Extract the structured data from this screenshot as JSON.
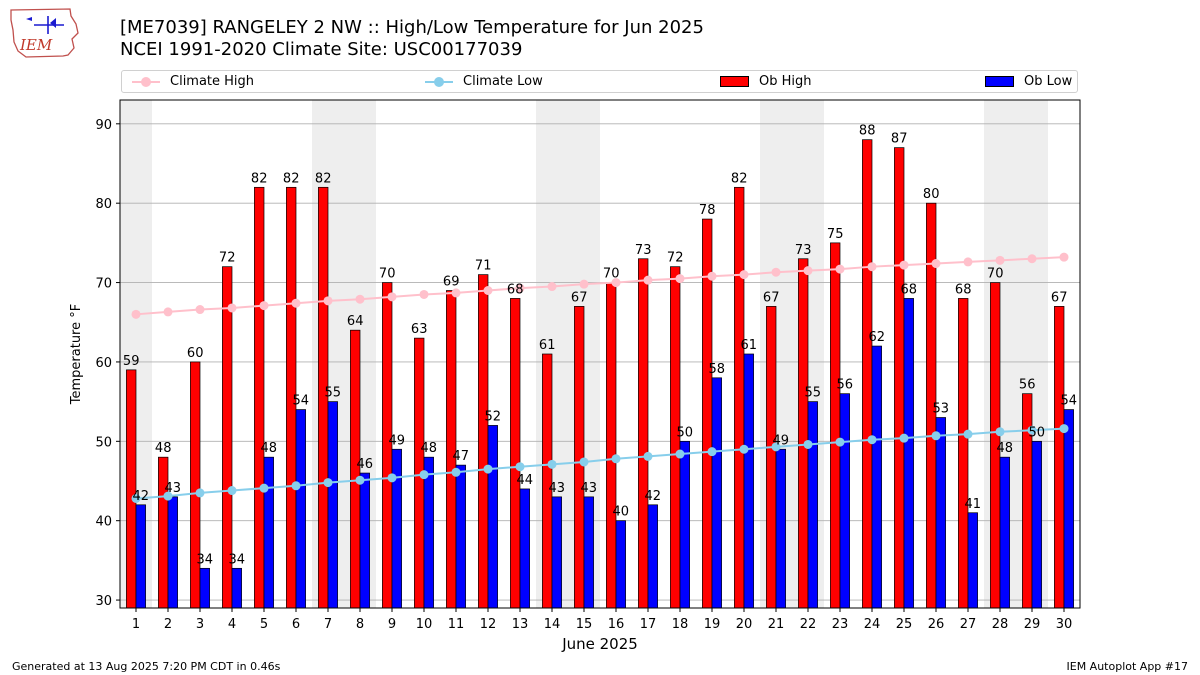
{
  "logo": {
    "text": "IEM"
  },
  "title": {
    "line1": "[ME7039] RANGELEY 2 NW :: High/Low Temperature for Jun 2025",
    "line2": "NCEI 1991-2020 Climate Site: USC00177039"
  },
  "legend": {
    "climate_high": "Climate High",
    "climate_low": "Climate Low",
    "ob_high": "Ob High",
    "ob_low": "Ob Low"
  },
  "footer": {
    "left": "Generated at 13 Aug 2025 7:20 PM CDT in 0.46s",
    "right": "IEM Autoplot App #17"
  },
  "colors": {
    "ob_high": "#ff0000",
    "ob_low": "#0000ff",
    "climate_high": "#ffc0cb",
    "climate_low": "#87ceeb",
    "weekend_band": "#eeeeee"
  },
  "chart_data": {
    "type": "bar",
    "title": "[ME7039] RANGELEY 2 NW :: High/Low Temperature for Jun 2025",
    "xlabel": "June 2025",
    "ylabel": "Temperature °F",
    "ylim": [
      29,
      93
    ],
    "yticks": [
      30,
      40,
      50,
      60,
      70,
      80,
      90
    ],
    "grid": true,
    "legend_position": "top",
    "categories": [
      "1",
      "2",
      "3",
      "4",
      "5",
      "6",
      "7",
      "8",
      "9",
      "10",
      "11",
      "12",
      "13",
      "14",
      "15",
      "16",
      "17",
      "18",
      "19",
      "20",
      "21",
      "22",
      "23",
      "24",
      "25",
      "26",
      "27",
      "28",
      "29",
      "30"
    ],
    "shaded_days": [
      1,
      7,
      8,
      14,
      15,
      21,
      22,
      28,
      29
    ],
    "series": [
      {
        "name": "Ob High",
        "type": "bar",
        "values": [
          59,
          48,
          60,
          72,
          82,
          82,
          82,
          64,
          70,
          63,
          69,
          71,
          68,
          61,
          67,
          70,
          73,
          72,
          78,
          82,
          67,
          73,
          75,
          88,
          87,
          80,
          68,
          70,
          56,
          67
        ]
      },
      {
        "name": "Ob Low",
        "type": "bar",
        "values": [
          42,
          43,
          34,
          34,
          48,
          54,
          55,
          46,
          49,
          48,
          47,
          52,
          44,
          43,
          43,
          40,
          42,
          50,
          58,
          61,
          49,
          55,
          56,
          62,
          68,
          53,
          41,
          48,
          50,
          54
        ]
      },
      {
        "name": "Climate High",
        "type": "line",
        "values": [
          66.0,
          66.3,
          66.6,
          66.8,
          67.1,
          67.4,
          67.7,
          67.9,
          68.2,
          68.5,
          68.7,
          69.0,
          69.3,
          69.5,
          69.8,
          70.0,
          70.3,
          70.5,
          70.8,
          71.0,
          71.3,
          71.5,
          71.7,
          72.0,
          72.2,
          72.4,
          72.6,
          72.8,
          73.0,
          73.2
        ]
      },
      {
        "name": "Climate Low",
        "type": "line",
        "values": [
          42.8,
          43.1,
          43.5,
          43.8,
          44.1,
          44.4,
          44.8,
          45.1,
          45.4,
          45.8,
          46.1,
          46.5,
          46.8,
          47.1,
          47.4,
          47.8,
          48.1,
          48.4,
          48.7,
          49.0,
          49.3,
          49.6,
          49.9,
          50.2,
          50.4,
          50.7,
          50.9,
          51.2,
          51.4,
          51.6
        ]
      }
    ]
  }
}
